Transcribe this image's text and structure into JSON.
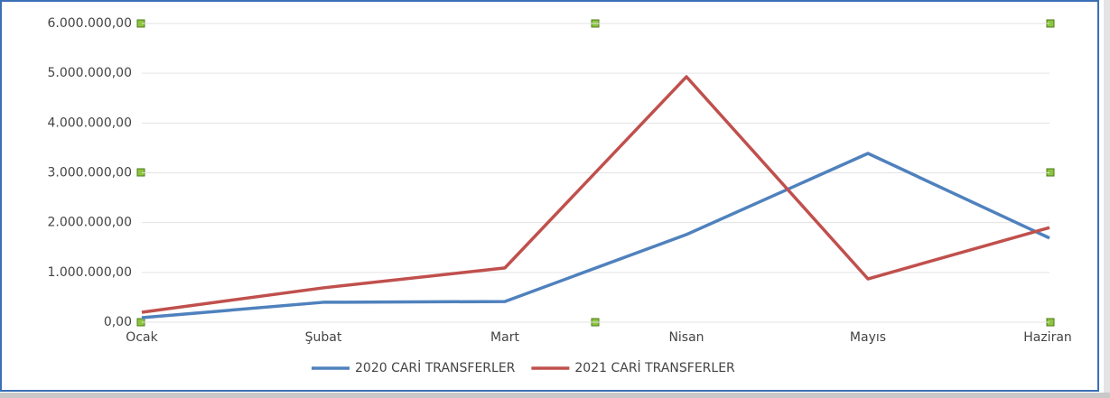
{
  "chart_data": {
    "type": "line",
    "categories": [
      "Ocak",
      "Şubat",
      "Mart",
      "Nisan",
      "Mayıs",
      "Haziran"
    ],
    "series": [
      {
        "name": "2020 CARİ TRANSFERLER",
        "color": "#4f81bd",
        "values": [
          90000,
          400000,
          415000,
          1760000,
          3390000,
          1690000
        ]
      },
      {
        "name": "2021 CARİ TRANSFERLER",
        "color": "#c0504d",
        "values": [
          200000,
          690000,
          1090000,
          4930000,
          870000,
          1900000
        ]
      }
    ],
    "ylim": [
      0,
      6000000
    ],
    "yticks": [
      {
        "value": 0,
        "label": "0,00"
      },
      {
        "value": 1000000,
        "label": "1.000.000,00"
      },
      {
        "value": 2000000,
        "label": "2.000.000,00"
      },
      {
        "value": 3000000,
        "label": "3.000.000,00"
      },
      {
        "value": 4000000,
        "label": "4.000.000,00"
      },
      {
        "value": 5000000,
        "label": "5.000.000,00"
      },
      {
        "value": 6000000,
        "label": "6.000.000,00"
      }
    ],
    "grid": true,
    "legend": "bottom"
  }
}
